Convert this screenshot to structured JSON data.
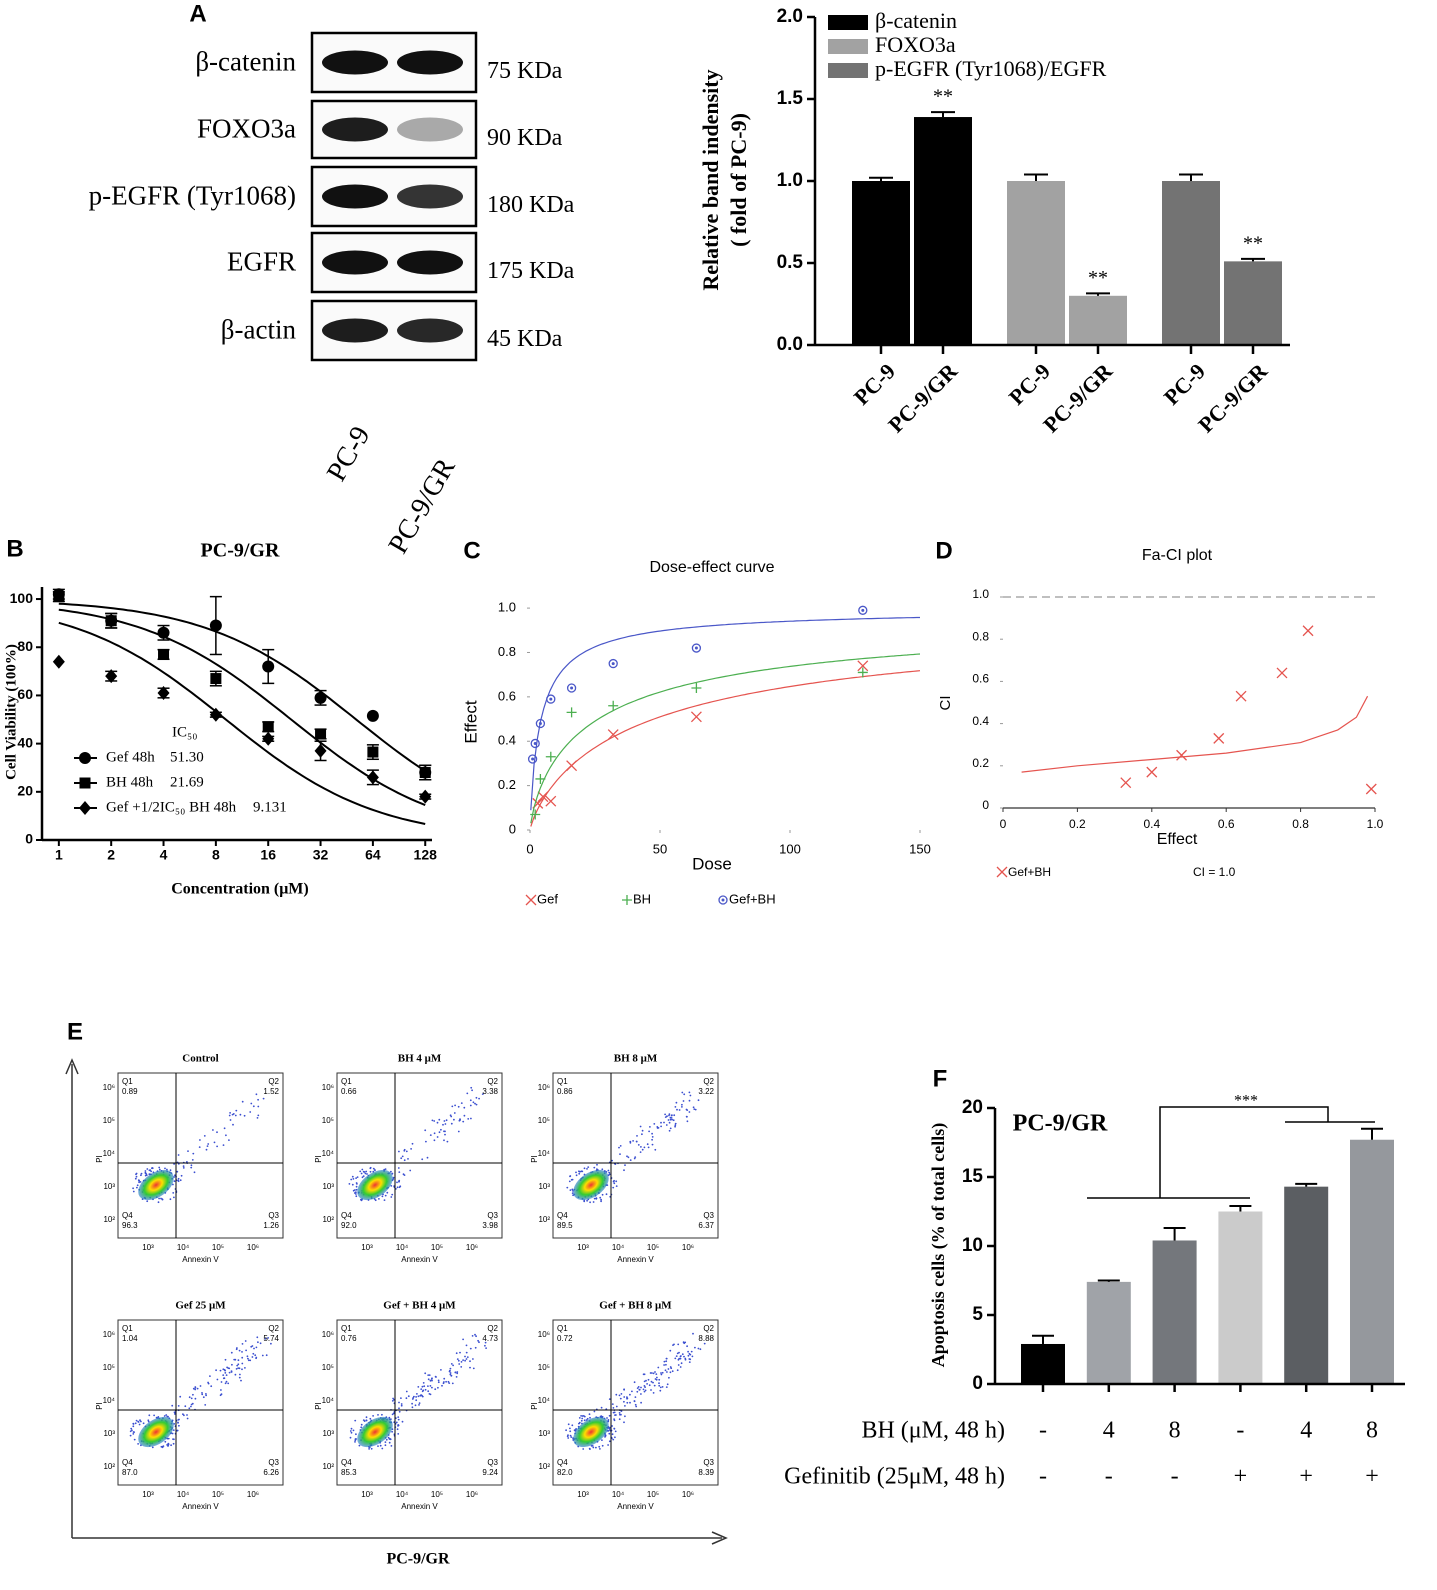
{
  "panel_letters": [
    "A",
    "B",
    "C",
    "D",
    "E",
    "F"
  ],
  "blot": {
    "proteins": [
      {
        "name": "β-catenin",
        "size": "75 KDa"
      },
      {
        "name": "FOXO3a",
        "size": "90 KDa"
      },
      {
        "name": "p-EGFR (Tyr1068)",
        "size": "180 KDa"
      },
      {
        "name": "EGFR",
        "size": "175 KDa"
      },
      {
        "name": "β-actin",
        "size": "45 KDa"
      }
    ],
    "lanes": [
      "PC-9",
      "PC-9/GR"
    ]
  },
  "chart_data": [
    {
      "type": "bar",
      "ylabel": [
        "Relative band indensity",
        "( fold of PC-9)"
      ],
      "categories": [
        "PC-9",
        "PC-9/GR"
      ],
      "ylim": [
        0,
        2
      ],
      "yticks": [
        {
          "value": 0,
          "label": "0.0"
        },
        {
          "value": 0.5,
          "label": "0.5"
        },
        {
          "value": 1,
          "label": "1.0"
        },
        {
          "value": 1.5,
          "label": "1.5"
        },
        {
          "value": 2,
          "label": "2.0"
        }
      ],
      "series": [
        {
          "name": "β-catenin",
          "color": "#000000",
          "values": [
            1.0,
            1.39
          ],
          "errors": [
            0.02,
            0.03
          ],
          "annotations": [
            null,
            "**"
          ]
        },
        {
          "name": "FOXO3a",
          "color": "#a2a2a2",
          "values": [
            1.0,
            0.3
          ],
          "errors": [
            0.04,
            0.015
          ],
          "annotations": [
            null,
            "**"
          ]
        },
        {
          "name": "p-EGFR (Tyr1068)/EGFR",
          "color": "#737373",
          "values": [
            1.0,
            0.51
          ],
          "errors": [
            0.04,
            0.015
          ],
          "annotations": [
            null,
            "**"
          ]
        }
      ]
    },
    {
      "type": "line",
      "title": "PC-9/GR",
      "xlabel": "Concentration (μM)",
      "ylabel": "Cell Viability (100%)",
      "xscale": "log2",
      "xlim": [
        0.8,
        140
      ],
      "xticks": [
        1,
        2,
        4,
        8,
        16,
        32,
        64,
        128
      ],
      "ylim": [
        0,
        105
      ],
      "yticks": [
        0,
        20,
        40,
        60,
        80,
        100
      ],
      "ic50_label": "IC₅₀",
      "x": [
        1,
        2,
        4,
        8,
        16,
        32,
        64,
        128
      ],
      "series": [
        {
          "name": "Gef 48h",
          "marker": "circle",
          "color": "#000000",
          "ic50": {
            "value": 51.3,
            "label": "51.30"
          },
          "values": [
            102,
            91,
            86,
            89,
            72,
            59,
            51.5,
            28
          ],
          "errors": [
            2,
            3,
            3,
            12,
            7,
            3,
            0,
            3
          ]
        },
        {
          "name": "BH 48h",
          "marker": "square",
          "color": "#000000",
          "ic50": 21.69,
          "values": [
            101,
            91,
            77,
            67,
            47,
            44,
            36.5,
            28
          ],
          "errors": [
            2,
            3,
            2,
            3,
            2,
            2,
            3,
            3
          ]
        },
        {
          "name": "Gef +1/2IC₅₀ BH 48h",
          "marker": "diamond",
          "color": "#000000",
          "ic50": 9.131,
          "values": [
            74,
            68,
            61,
            52,
            42,
            37,
            26,
            18
          ],
          "errors": [
            0,
            2,
            2,
            1,
            1,
            4,
            3,
            1
          ]
        }
      ]
    },
    {
      "type": "scatter",
      "title": "Dose-effect curve",
      "xlabel": "Dose",
      "ylabel": "Effect",
      "xlim": [
        0,
        150
      ],
      "xticks": [
        0,
        50,
        100,
        150
      ],
      "ylim": [
        0,
        1.05
      ],
      "yticks": [
        0,
        0.2,
        0.4,
        0.6,
        0.8,
        {
          "value": 1,
          "label": "1.0"
        }
      ],
      "series": [
        {
          "name": "Gef",
          "marker": "x",
          "color": "#e5544f",
          "x": [
            3,
            5,
            8,
            16,
            32,
            64,
            128
          ],
          "values": [
            0.12,
            0.15,
            0.13,
            0.29,
            0.43,
            0.51,
            0.74
          ]
        },
        {
          "name": "BH",
          "marker": "+",
          "color": "#4caf50",
          "x": [
            2,
            4,
            8,
            16,
            32,
            64,
            128
          ],
          "values": [
            0.07,
            0.23,
            0.33,
            0.53,
            0.56,
            0.64,
            0.71
          ]
        },
        {
          "name": "Gef+BH",
          "marker": "circle-dot",
          "color": "#4a57c8",
          "x": [
            1,
            2,
            4,
            8,
            16,
            32,
            64,
            128
          ],
          "values": [
            0.32,
            0.39,
            0.48,
            0.59,
            0.64,
            0.75,
            0.82,
            0.99
          ]
        }
      ]
    },
    {
      "type": "scatter",
      "title": "Fa-CI plot",
      "xlabel": "Effect",
      "ylabel": "CI",
      "xlim": [
        0,
        1
      ],
      "ylim": [
        0,
        1
      ],
      "xticks": [
        0,
        0.2,
        0.4,
        0.6,
        0.8,
        {
          "value": 1,
          "label": "1.0"
        }
      ],
      "yticks": [
        0,
        0.2,
        0.4,
        0.6,
        0.8,
        {
          "value": 1,
          "label": "1.0"
        }
      ],
      "reference": {
        "value": 1,
        "label": "CI = 1.0"
      },
      "series": [
        {
          "name": "Gef+BH",
          "marker": "x",
          "color": "#e5544f",
          "x": [
            0.33,
            0.4,
            0.48,
            0.58,
            0.64,
            0.75,
            0.82,
            0.99
          ],
          "values": [
            0.12,
            0.17,
            0.25,
            0.33,
            0.53,
            0.64,
            0.84,
            0.09
          ]
        }
      ],
      "curve": {
        "x": [
          0.05,
          0.2,
          0.4,
          0.6,
          0.8,
          0.9,
          0.95,
          0.98
        ],
        "values": [
          0.17,
          0.2,
          0.23,
          0.26,
          0.31,
          0.37,
          0.43,
          0.53
        ]
      }
    },
    {
      "type": "bar",
      "title": "PC-9/GR",
      "ylabel": "Apoptosis cells (% of total cells)",
      "ylim": [
        0,
        20
      ],
      "yticks": [
        0,
        5,
        10,
        15,
        20
      ],
      "values": [
        2.9,
        7.4,
        10.4,
        12.5,
        14.3,
        17.7
      ],
      "errors": [
        0.6,
        0.1,
        0.9,
        0.4,
        0.2,
        0.8
      ],
      "colors": [
        "#000000",
        "#a0a3a8",
        "#74777c",
        "#cbcbcb",
        "#5b5e62",
        "#95989d"
      ],
      "significance": "***",
      "rows": [
        {
          "label": "BH (μM, 48 h)",
          "cells": [
            "-",
            "4",
            "8",
            "-",
            "4",
            "8"
          ]
        },
        {
          "label": "Gefinitib (25μM, 48 h)",
          "cells": [
            "-",
            "-",
            "-",
            "+",
            "+",
            "+"
          ]
        }
      ]
    }
  ],
  "flow": {
    "xlabel": "Annexin V",
    "ylabel": "PI",
    "xticks": [
      "10³",
      "10⁴",
      "10⁵",
      "10⁶"
    ],
    "yticks": [
      "10²",
      "10³",
      "10⁴",
      "10⁵",
      "10⁶"
    ],
    "footer": "PC-9/GR",
    "plots": [
      {
        "title": "Control",
        "quadrants": [
          {
            "name": "Q1",
            "value": "0.89"
          },
          {
            "name": "Q2",
            "value": "1.52"
          },
          {
            "name": "Q3",
            "value": "1.26"
          },
          {
            "name": "Q4",
            "value": "96.3"
          }
        ]
      },
      {
        "title": "BH 4 μM",
        "quadrants": [
          {
            "name": "Q1",
            "value": "0.66"
          },
          {
            "name": "Q2",
            "value": "3.38"
          },
          {
            "name": "Q3",
            "value": "3.98"
          },
          {
            "name": "Q4",
            "value": "92.0"
          }
        ]
      },
      {
        "title": "BH 8 μM",
        "quadrants": [
          {
            "name": "Q1",
            "value": "0.86"
          },
          {
            "name": "Q2",
            "value": "3.22"
          },
          {
            "name": "Q3",
            "value": "6.37"
          },
          {
            "name": "Q4",
            "value": "89.5"
          }
        ]
      },
      {
        "title": "Gef 25 μM",
        "quadrants": [
          {
            "name": "Q1",
            "value": "1.04"
          },
          {
            "name": "Q2",
            "value": "5.74"
          },
          {
            "name": "Q3",
            "value": "6.26"
          },
          {
            "name": "Q4",
            "value": "87.0"
          }
        ]
      },
      {
        "title": "Gef + BH 4 μM",
        "quadrants": [
          {
            "name": "Q1",
            "value": "0.76"
          },
          {
            "name": "Q2",
            "value": "4.73"
          },
          {
            "name": "Q3",
            "value": "9.24"
          },
          {
            "name": "Q4",
            "value": "85.3"
          }
        ]
      },
      {
        "title": "Gef + BH 8 μM",
        "quadrants": [
          {
            "name": "Q1",
            "value": "0.72"
          },
          {
            "name": "Q2",
            "value": "8.88"
          },
          {
            "name": "Q3",
            "value": "8.39"
          },
          {
            "name": "Q4",
            "value": "82.0"
          }
        ]
      }
    ]
  }
}
